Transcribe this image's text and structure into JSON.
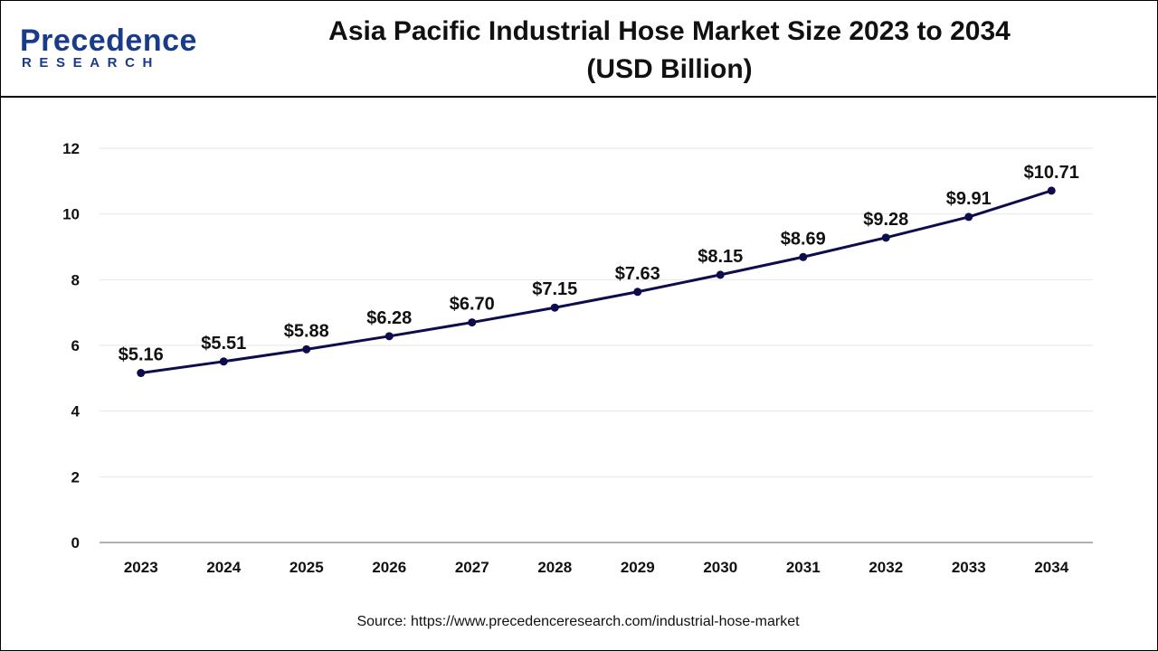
{
  "brand": {
    "name": "Precedence",
    "sub": "RESEARCH"
  },
  "title": {
    "line1": "Asia Pacific Industrial Hose Market Size 2023 to 2034",
    "line2": "(USD Billion)"
  },
  "source": "Source: https://www.precedenceresearch.com/industrial-hose-market",
  "colors": {
    "line": "#0d0d4d",
    "brand": "#1a3a8a",
    "grid": "#e6e6e6"
  },
  "chart_data": {
    "type": "line",
    "title": "Asia Pacific Industrial Hose Market Size 2023 to 2034 (USD Billion)",
    "xlabel": "",
    "ylabel": "",
    "categories": [
      "2023",
      "2024",
      "2025",
      "2026",
      "2027",
      "2028",
      "2029",
      "2030",
      "2031",
      "2032",
      "2033",
      "2034"
    ],
    "values": [
      5.16,
      5.51,
      5.88,
      6.28,
      6.7,
      7.15,
      7.63,
      8.15,
      8.69,
      9.28,
      9.91,
      10.71
    ],
    "data_labels": [
      "$5.16",
      "$5.51",
      "$5.88",
      "$6.28",
      "$6.70",
      "$7.15",
      "$7.63",
      "$8.15",
      "$8.69",
      "$9.28",
      "$9.91",
      "$10.71"
    ],
    "ylim": [
      0,
      12
    ],
    "yticks": [
      "0",
      "2",
      "4",
      "6",
      "8",
      "10",
      "12"
    ],
    "grid": true,
    "legend": "none"
  }
}
